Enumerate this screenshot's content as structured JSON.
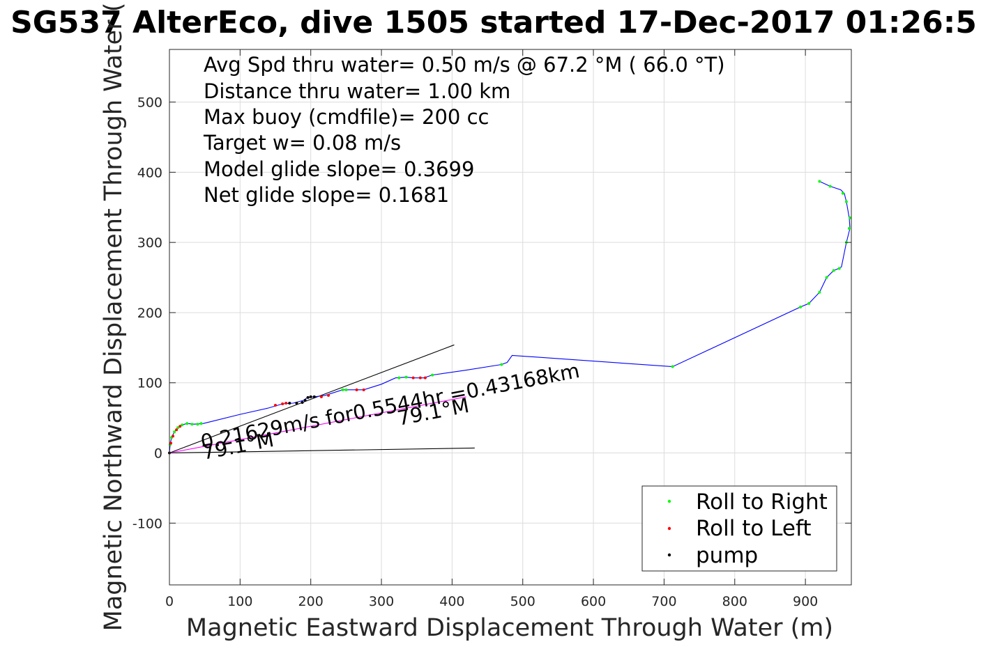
{
  "chart_data": {
    "type": "scatter",
    "title": "SG537 AlterEco, dive 1505 started 17-Dec-2017 01:26:5",
    "xlabel": "Magnetic Eastward Displacement Through Water (m)",
    "ylabel": "Magnetic Northward Displacement Through Water (",
    "xlim": [
      0,
      965
    ],
    "ylim": [
      -188,
      575
    ],
    "xticks": [
      0,
      100,
      200,
      300,
      400,
      500,
      600,
      700,
      800,
      900
    ],
    "yticks": [
      -100,
      0,
      100,
      200,
      300,
      400,
      500
    ],
    "grid": true,
    "legend_position": "bottom-right",
    "info_lines": [
      "Avg Spd thru water=  0.50 m/s @  67.2 °M ( 66.0 °T)",
      "Distance thru water=  1.00 km",
      "Max buoy (cmdfile)= 200 cc",
      "Target w= 0.08 m/s",
      "Model glide slope= 0.3699",
      "Net glide slope= 0.1681"
    ],
    "annotations": {
      "speed_text": "0.21629m/s for0.5544hr =0.43168km",
      "heading_label_1": "79.1°M",
      "heading_label_2": "79.1°M"
    },
    "track": {
      "color": "#0000ff",
      "points": [
        [
          0,
          0
        ],
        [
          1,
          12
        ],
        [
          3,
          22
        ],
        [
          7,
          30
        ],
        [
          12,
          36
        ],
        [
          18,
          40
        ],
        [
          25,
          42
        ],
        [
          35,
          41
        ],
        [
          48,
          42
        ],
        [
          60,
          45
        ],
        [
          100,
          55
        ],
        [
          140,
          64
        ],
        [
          160,
          70
        ],
        [
          175,
          71
        ],
        [
          190,
          75
        ],
        [
          195,
          79
        ],
        [
          205,
          80
        ],
        [
          220,
          82
        ],
        [
          245,
          90
        ],
        [
          260,
          90
        ],
        [
          275,
          90
        ],
        [
          300,
          98
        ],
        [
          320,
          107
        ],
        [
          335,
          108
        ],
        [
          345,
          107
        ],
        [
          360,
          107
        ],
        [
          372,
          111
        ],
        [
          420,
          118
        ],
        [
          470,
          126
        ],
        [
          478,
          129
        ],
        [
          485,
          139
        ],
        [
          712,
          123
        ],
        [
          893,
          208
        ],
        [
          905,
          213
        ],
        [
          920,
          229
        ],
        [
          930,
          250
        ],
        [
          940,
          260
        ],
        [
          945,
          262
        ],
        [
          951,
          265
        ],
        [
          958,
          300
        ],
        [
          963,
          320
        ],
        [
          962,
          335
        ],
        [
          958,
          358
        ],
        [
          955,
          370
        ],
        [
          950,
          375
        ],
        [
          935,
          380
        ],
        [
          920,
          387
        ]
      ]
    },
    "lines": [
      {
        "name": "",
        "color": "#000000",
        "points": [
          [
            0,
            0
          ],
          [
            403,
            154
          ]
        ]
      },
      {
        "name": "",
        "color": "#000000",
        "points": [
          [
            0,
            0
          ],
          [
            432,
            7
          ]
        ]
      },
      {
        "name": "",
        "color": "#ff00ff",
        "points": [
          [
            0,
            0
          ],
          [
            420,
            80
          ]
        ]
      }
    ],
    "series": [
      {
        "name": "Roll to Right",
        "color": "#00ff00",
        "points": [
          [
            1,
            12
          ],
          [
            3,
            22
          ],
          [
            7,
            30
          ],
          [
            12,
            36
          ],
          [
            18,
            40
          ],
          [
            25,
            42
          ],
          [
            32,
            41
          ],
          [
            40,
            41
          ],
          [
            45,
            42
          ],
          [
            245,
            90
          ],
          [
            250,
            90
          ],
          [
            325,
            107
          ],
          [
            335,
            108
          ],
          [
            372,
            111
          ],
          [
            470,
            126
          ],
          [
            712,
            123
          ],
          [
            893,
            208
          ],
          [
            905,
            213
          ],
          [
            920,
            229
          ],
          [
            930,
            250
          ],
          [
            940,
            260
          ],
          [
            948,
            263
          ],
          [
            958,
            300
          ],
          [
            962,
            320
          ],
          [
            963,
            335
          ],
          [
            958,
            358
          ],
          [
            953,
            370
          ],
          [
            935,
            380
          ],
          [
            920,
            387
          ]
        ]
      },
      {
        "name": "Roll to Left",
        "color": "#ff0000",
        "points": [
          [
            2,
            14
          ],
          [
            5,
            24
          ],
          [
            10,
            33
          ],
          [
            15,
            38
          ],
          [
            150,
            68
          ],
          [
            160,
            70
          ],
          [
            165,
            71
          ],
          [
            215,
            80
          ],
          [
            225,
            82
          ],
          [
            265,
            90
          ],
          [
            275,
            90
          ],
          [
            345,
            107
          ],
          [
            355,
            107
          ],
          [
            362,
            107
          ]
        ]
      },
      {
        "name": "pump",
        "color": "#000000",
        "points": [
          [
            0,
            0
          ],
          [
            170,
            71
          ],
          [
            180,
            71
          ],
          [
            188,
            72
          ],
          [
            192,
            75
          ],
          [
            196,
            79
          ],
          [
            200,
            80
          ],
          [
            205,
            80
          ]
        ]
      }
    ]
  }
}
